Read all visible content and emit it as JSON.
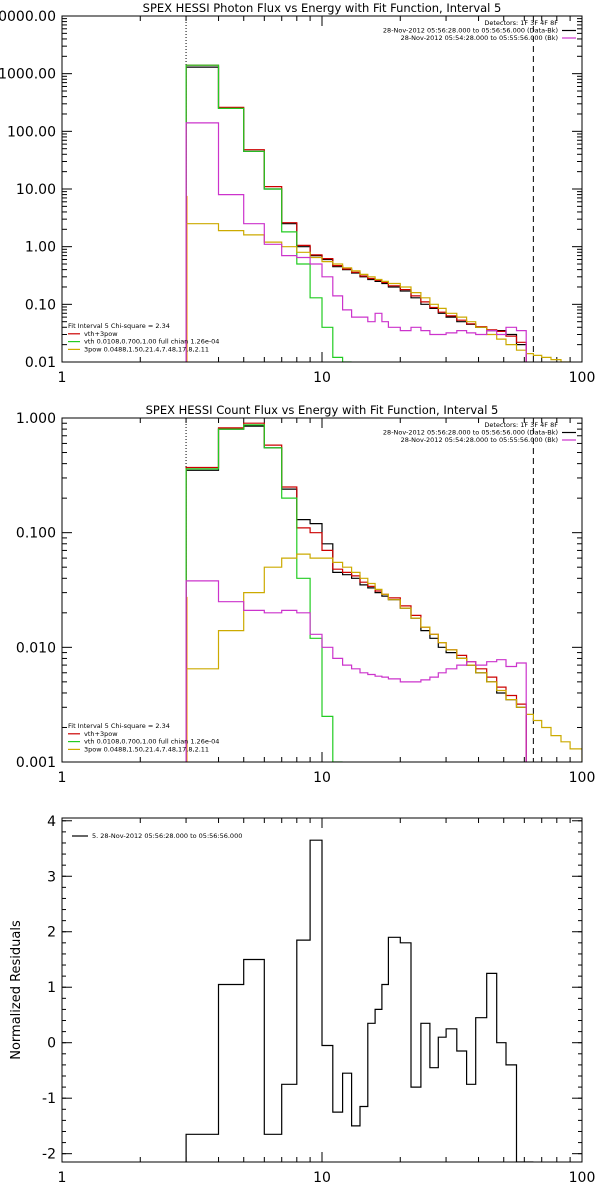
{
  "colors": {
    "black": "#000000",
    "red": "#cc0000",
    "green": "#22cc22",
    "magenta": "#cc33cc",
    "yellow": "#ccaa00",
    "orange": "#ff9900"
  },
  "chart_data": [
    {
      "type": "line",
      "title": "SPEX HESSI Photon Flux vs Energy with Fit Function, Interval 5",
      "xscale": "log",
      "yscale": "log",
      "xlim": [
        1,
        100
      ],
      "ylim": [
        0.01,
        10000
      ],
      "xticks": [
        1,
        10,
        100
      ],
      "xtick_labels": [
        "1",
        "10",
        "100"
      ],
      "yticks": [
        0.01,
        0.1,
        1,
        10,
        100,
        1000,
        10000
      ],
      "ytick_labels": [
        "0.01",
        "0.10",
        "1.00",
        "10.00",
        "100.00",
        "1000.00",
        "10000.00"
      ],
      "vlines": [
        {
          "x": 3,
          "style": "dotted",
          "color": "black"
        },
        {
          "x": 3,
          "style": "solid",
          "color": "orange"
        },
        {
          "x": 65,
          "style": "dashed",
          "color": "black"
        }
      ],
      "legend_top_right": [
        "Detectors: 1F 3F 4F 8F",
        "28-Nov-2012 05:56:28.000 to 05:56:56.000 (Data-Bk)",
        "28-Nov-2012 05:54:28.000 to 05:55:56.000 (Bk)"
      ],
      "legend_bottom_left": [
        "Fit Interval 5   Chi-square = 2.34",
        "vth+3pow",
        "vth 0.0108,0.700,1.00   full chian 1.26e-04",
        "3pow 0.0488,1.50,21.4,7.48,17.8,2.11"
      ],
      "x_edges": [
        3,
        4,
        5,
        6,
        7,
        8,
        9,
        10,
        11,
        12,
        13,
        14,
        15,
        16,
        17,
        18,
        20,
        22,
        24,
        26,
        28,
        30,
        33,
        36,
        39,
        43,
        47,
        51,
        56,
        61,
        65,
        70,
        76,
        83,
        90,
        100
      ],
      "series": [
        {
          "name": "Data-Bk",
          "color": "black",
          "values": [
            1300,
            250,
            45,
            10,
            2.5,
            1.0,
            0.7,
            0.6,
            0.45,
            0.4,
            0.35,
            0.3,
            0.27,
            0.25,
            0.23,
            0.2,
            0.17,
            0.13,
            0.1,
            0.085,
            0.07,
            0.06,
            0.05,
            0.045,
            0.04,
            0.035,
            0.035,
            0.03,
            0.02,
            null,
            null,
            null,
            null,
            null,
            null
          ]
        },
        {
          "name": "vth+3pow",
          "color": "red",
          "values": [
            1400,
            260,
            48,
            11,
            2.6,
            1.05,
            0.72,
            0.62,
            0.47,
            0.41,
            0.36,
            0.31,
            0.28,
            0.26,
            0.24,
            0.21,
            0.18,
            0.14,
            0.11,
            0.088,
            0.073,
            0.063,
            0.053,
            0.046,
            0.041,
            0.036,
            0.034,
            0.028,
            0.022,
            null,
            null,
            null,
            null,
            null,
            null
          ]
        },
        {
          "name": "vth",
          "color": "green",
          "values": [
            1400,
            250,
            45,
            10,
            1.8,
            0.5,
            0.13,
            0.04,
            0.012,
            0.01,
            null,
            null,
            null,
            null,
            null,
            null,
            null,
            null,
            null,
            null,
            null,
            null,
            null,
            null,
            null,
            null,
            null,
            null,
            null,
            null,
            null,
            null,
            null,
            null,
            null
          ]
        },
        {
          "name": "3pow",
          "color": "yellow",
          "values": [
            2.5,
            1.9,
            1.6,
            1.2,
            1.0,
            0.8,
            0.65,
            0.55,
            0.5,
            0.43,
            0.38,
            0.33,
            0.3,
            0.27,
            0.25,
            0.23,
            0.2,
            0.16,
            0.13,
            0.1,
            0.085,
            0.07,
            0.06,
            0.05,
            0.04,
            0.03,
            0.025,
            0.02,
            0.016,
            0.014,
            0.013,
            0.012,
            0.011,
            0.01,
            null
          ]
        },
        {
          "name": "Bk",
          "color": "magenta",
          "values": [
            140,
            8,
            2.5,
            1.1,
            0.7,
            0.65,
            0.5,
            0.3,
            0.14,
            0.08,
            0.06,
            0.06,
            0.05,
            0.07,
            0.05,
            0.04,
            0.035,
            0.04,
            0.035,
            0.03,
            0.03,
            0.032,
            0.035,
            0.032,
            0.03,
            0.035,
            0.03,
            0.04,
            0.035,
            null,
            null,
            null,
            null,
            null,
            null
          ]
        }
      ]
    },
    {
      "type": "line",
      "title": "SPEX HESSI Count Flux vs Energy with Fit Function, Interval 5",
      "xscale": "log",
      "yscale": "log",
      "xlim": [
        1,
        100
      ],
      "ylim": [
        0.001,
        1.0
      ],
      "xticks": [
        1,
        10,
        100
      ],
      "xtick_labels": [
        "1",
        "10",
        "100"
      ],
      "yticks": [
        0.001,
        0.01,
        0.1,
        1.0
      ],
      "ytick_labels": [
        "0.001",
        "0.010",
        "0.100",
        "1.000"
      ],
      "vlines": [
        {
          "x": 3,
          "style": "dotted",
          "color": "black"
        },
        {
          "x": 3,
          "style": "solid",
          "color": "orange"
        },
        {
          "x": 65,
          "style": "dashed",
          "color": "black"
        }
      ],
      "legend_top_right": [
        "Detectors: 1F 3F 4F 8F",
        "28-Nov-2012 05:56:28.000 to 05:56:56.000 (Data-Bk)",
        "28-Nov-2012 05:54:28.000 to 05:55:56.000 (Bk)"
      ],
      "legend_bottom_left": [
        "Fit Interval 5   Chi-square = 2.34",
        "vth+3pow",
        "vth 0.0108,0.700,1.00   full chian 1.26e-04",
        "3pow 0.0488,1.50,21.4,7.48,17.8,2.11"
      ],
      "x_edges": [
        3,
        4,
        5,
        6,
        7,
        8,
        9,
        10,
        11,
        12,
        13,
        14,
        15,
        16,
        17,
        18,
        20,
        22,
        24,
        26,
        28,
        30,
        33,
        36,
        39,
        43,
        47,
        51,
        56,
        61,
        65,
        70,
        76,
        83,
        90,
        100
      ],
      "series": [
        {
          "name": "Data-Bk",
          "color": "black",
          "values": [
            0.35,
            0.8,
            0.85,
            0.55,
            0.24,
            0.13,
            0.12,
            0.08,
            0.045,
            0.043,
            0.04,
            0.035,
            0.033,
            0.03,
            0.028,
            0.026,
            0.022,
            0.018,
            0.014,
            0.012,
            0.01,
            0.009,
            0.008,
            0.007,
            0.006,
            0.005,
            0.004,
            0.0035,
            0.003,
            null,
            null,
            null,
            null,
            null,
            null
          ]
        },
        {
          "name": "vth+3pow",
          "color": "red",
          "values": [
            0.37,
            0.82,
            0.9,
            0.58,
            0.25,
            0.11,
            0.1,
            0.07,
            0.048,
            0.045,
            0.042,
            0.037,
            0.034,
            0.031,
            0.029,
            0.027,
            0.023,
            0.019,
            0.015,
            0.013,
            0.011,
            0.0095,
            0.0085,
            0.0075,
            0.0065,
            0.0055,
            0.0045,
            0.0038,
            0.0032,
            null,
            null,
            null,
            null,
            null,
            null
          ]
        },
        {
          "name": "vth",
          "color": "green",
          "values": [
            0.36,
            0.8,
            0.87,
            0.55,
            0.2,
            0.04,
            0.012,
            0.0025,
            0.0005,
            null,
            null,
            null,
            null,
            null,
            null,
            null,
            null,
            null,
            null,
            null,
            null,
            null,
            null,
            null,
            null,
            null,
            null,
            null,
            null,
            null,
            null,
            null,
            null,
            null,
            null
          ]
        },
        {
          "name": "3pow",
          "color": "yellow",
          "values": [
            0.0065,
            0.014,
            0.03,
            0.05,
            0.06,
            0.065,
            0.06,
            0.06,
            0.055,
            0.05,
            0.045,
            0.04,
            0.036,
            0.032,
            0.029,
            0.026,
            0.022,
            0.018,
            0.015,
            0.013,
            0.011,
            0.0095,
            0.008,
            0.007,
            0.006,
            0.005,
            0.0042,
            0.0035,
            0.003,
            0.0026,
            0.0023,
            0.002,
            0.0017,
            0.0015,
            0.0013
          ]
        },
        {
          "name": "Bk",
          "color": "magenta",
          "values": [
            0.038,
            0.025,
            0.021,
            0.02,
            0.021,
            0.02,
            0.013,
            0.01,
            0.008,
            0.007,
            0.0065,
            0.006,
            0.0058,
            0.0056,
            0.0055,
            0.0053,
            0.005,
            0.005,
            0.0052,
            0.0055,
            0.006,
            0.0065,
            0.007,
            0.0075,
            0.007,
            0.0075,
            0.0078,
            0.0068,
            0.0073,
            null,
            null,
            null,
            null,
            null,
            null
          ]
        }
      ]
    },
    {
      "type": "line",
      "title": "",
      "xscale": "log",
      "yscale": "linear",
      "xlim": [
        1,
        100
      ],
      "ylim": [
        -2.15,
        4.05
      ],
      "xticks": [
        1,
        10,
        100
      ],
      "xtick_labels": [
        "1",
        "10",
        "100"
      ],
      "yticks": [
        -2,
        -1,
        0,
        1,
        2,
        3,
        4
      ],
      "ytick_labels": [
        "-2",
        "-1",
        "0",
        "1",
        "2",
        "3",
        "4"
      ],
      "ylabel": "Normalized Residuals",
      "legend_top_left": [
        "5. 28-Nov-2012 05:56:28.000 to 05:56:56.000"
      ],
      "x_edges": [
        3,
        4,
        5,
        6,
        7,
        8,
        9,
        10,
        11,
        12,
        13,
        14,
        15,
        16,
        17,
        18,
        20,
        22,
        24,
        26,
        28,
        30,
        33,
        36,
        39,
        43,
        47,
        51,
        56,
        61,
        65
      ],
      "series": [
        {
          "name": "",
          "color": "black",
          "values": [
            -1.65,
            1.05,
            1.5,
            -1.65,
            -0.75,
            1.85,
            3.65,
            -0.05,
            -1.25,
            -0.55,
            -1.5,
            -1.15,
            0.35,
            0.6,
            1.05,
            1.9,
            1.8,
            -0.8,
            0.35,
            -0.45,
            0.1,
            0.25,
            -0.15,
            -0.75,
            0.45,
            1.25,
            0.0,
            -0.4,
            -2.15,
            -2.15
          ]
        }
      ]
    }
  ]
}
